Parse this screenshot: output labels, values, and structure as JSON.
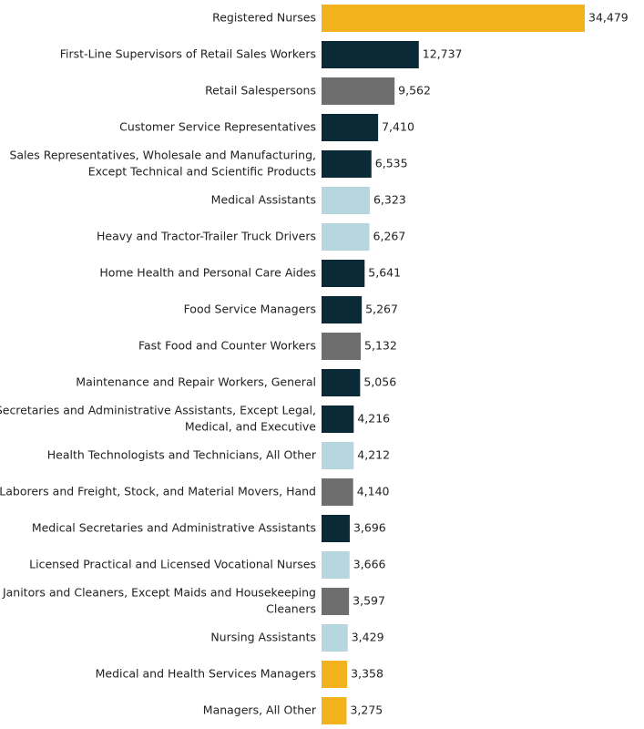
{
  "chart_data": {
    "type": "bar",
    "orientation": "horizontal",
    "title": "",
    "xlabel": "",
    "ylabel": "",
    "grid": false,
    "categories": [
      "Registered Nurses",
      "First-Line Supervisors of Retail Sales Workers",
      "Retail Salespersons",
      "Customer Service Representatives",
      "Sales Representatives, Wholesale and Manufacturing, Except Technical and Scientific Products",
      "Medical Assistants",
      "Heavy and Tractor-Trailer Truck Drivers",
      "Home Health and Personal Care Aides",
      "Food Service Managers",
      "Fast Food and Counter Workers",
      "Maintenance and Repair Workers, General",
      "Secretaries and Administrative Assistants, Except Legal, Medical, and Executive",
      "Health Technologists and Technicians, All Other",
      "Laborers and Freight, Stock, and Material Movers, Hand",
      "Medical Secretaries and Administrative Assistants",
      "Licensed Practical and Licensed Vocational Nurses",
      "Janitors and Cleaners, Except Maids and Housekeeping Cleaners",
      "Nursing Assistants",
      "Medical and Health Services Managers",
      "Managers, All Other"
    ],
    "label_lines": [
      [
        "Registered Nurses"
      ],
      [
        "First-Line Supervisors of Retail Sales Workers"
      ],
      [
        "Retail Salespersons"
      ],
      [
        "Customer Service Representatives"
      ],
      [
        "Sales Representatives, Wholesale and Manufacturing,",
        "Except Technical and Scientific Products"
      ],
      [
        "Medical Assistants"
      ],
      [
        "Heavy and Tractor-Trailer Truck Drivers"
      ],
      [
        "Home Health and Personal Care Aides"
      ],
      [
        "Food Service Managers"
      ],
      [
        "Fast Food and Counter Workers"
      ],
      [
        "Maintenance and Repair Workers, General"
      ],
      [
        "Secretaries and Administrative Assistants, Except Legal,",
        "Medical, and Executive"
      ],
      [
        "Health Technologists and Technicians, All Other"
      ],
      [
        "Laborers and Freight, Stock, and Material Movers, Hand"
      ],
      [
        "Medical Secretaries and Administrative Assistants"
      ],
      [
        "Licensed Practical and Licensed Vocational Nurses"
      ],
      [
        "Janitors and Cleaners, Except Maids and Housekeeping",
        "Cleaners"
      ],
      [
        "Nursing Assistants"
      ],
      [
        "Medical and Health Services Managers"
      ],
      [
        "Managers, All Other"
      ]
    ],
    "values": [
      34479,
      12737,
      9562,
      7410,
      6535,
      6323,
      6267,
      5641,
      5267,
      5132,
      5056,
      4216,
      4212,
      4140,
      3696,
      3666,
      3597,
      3429,
      3358,
      3275
    ],
    "value_labels": [
      "34,479",
      "12,737",
      "9,562",
      "7,410",
      "6,535",
      "6,323",
      "6,267",
      "5,641",
      "5,267",
      "5,132",
      "5,056",
      "4,216",
      "4,212",
      "4,140",
      "3,696",
      "3,666",
      "3,597",
      "3,429",
      "3,358",
      "3,275"
    ],
    "color_groups": [
      "gold",
      "navy",
      "gray",
      "navy",
      "navy",
      "lightblue",
      "lightblue",
      "navy",
      "navy",
      "gray",
      "navy",
      "navy",
      "lightblue",
      "gray",
      "navy",
      "lightblue",
      "gray",
      "lightblue",
      "gold",
      "gold"
    ],
    "colors": {
      "gold": "#f3b31c",
      "navy": "#0b2a38",
      "gray": "#6e6e6e",
      "lightblue": "#b5d7dd"
    },
    "xlim": [
      0,
      34479
    ]
  }
}
